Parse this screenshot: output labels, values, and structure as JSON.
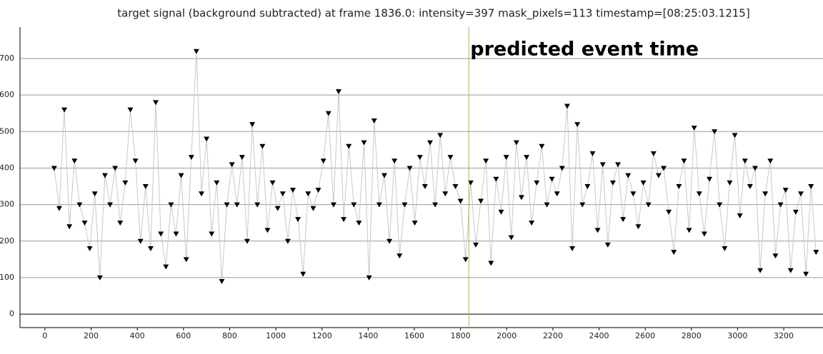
{
  "chart_data": {
    "type": "line",
    "title": "target signal (background subtracted) at frame 1836.0: intensity=397 mask_pixels=113 timestamp=[08:25:03.1215]",
    "x": [
      40,
      62,
      84,
      106,
      128,
      150,
      172,
      194,
      216,
      238,
      260,
      282,
      304,
      326,
      348,
      370,
      392,
      414,
      436,
      458,
      480,
      502,
      524,
      546,
      568,
      590,
      612,
      634,
      656,
      678,
      700,
      722,
      744,
      766,
      788,
      810,
      832,
      854,
      876,
      898,
      920,
      942,
      964,
      986,
      1008,
      1030,
      1052,
      1074,
      1096,
      1118,
      1140,
      1162,
      1184,
      1206,
      1228,
      1250,
      1272,
      1294,
      1316,
      1338,
      1360,
      1382,
      1404,
      1426,
      1448,
      1470,
      1492,
      1514,
      1536,
      1558,
      1580,
      1602,
      1624,
      1646,
      1668,
      1690,
      1712,
      1734,
      1756,
      1778,
      1800,
      1822,
      1844,
      1866,
      1888,
      1910,
      1932,
      1954,
      1976,
      1998,
      2020,
      2042,
      2064,
      2086,
      2108,
      2130,
      2152,
      2174,
      2196,
      2218,
      2240,
      2262,
      2284,
      2306,
      2328,
      2350,
      2372,
      2394,
      2416,
      2438,
      2460,
      2482,
      2504,
      2526,
      2548,
      2570,
      2592,
      2614,
      2636,
      2658,
      2680,
      2702,
      2724,
      2746,
      2768,
      2790,
      2812,
      2834,
      2856,
      2878,
      2900,
      2922,
      2944,
      2966,
      2988,
      3010,
      3032,
      3054,
      3076,
      3098,
      3120,
      3142,
      3164,
      3186,
      3208,
      3230,
      3252,
      3274,
      3296,
      3318,
      3340
    ],
    "series": [
      {
        "color": "#000000",
        "line_color": "#c8c8c8",
        "values": [
          400,
          290,
          560,
          240,
          420,
          300,
          250,
          180,
          330,
          100,
          380,
          300,
          400,
          250,
          360,
          560,
          420,
          200,
          350,
          180,
          580,
          220,
          130,
          300,
          220,
          380,
          150,
          430,
          720,
          330,
          480,
          220,
          360,
          90,
          300,
          410,
          300,
          430,
          200,
          520,
          300,
          460,
          230,
          360,
          290,
          330,
          200,
          340,
          260,
          110,
          330,
          290,
          340,
          420,
          550,
          300,
          610,
          260,
          460,
          300,
          250,
          470,
          100,
          530,
          300,
          380,
          200,
          420,
          160,
          300,
          400,
          250,
          430,
          350,
          470,
          300,
          490,
          330,
          430,
          350,
          310,
          150,
          360,
          190,
          310,
          420,
          140,
          370,
          280,
          430,
          210,
          470,
          320,
          430,
          250,
          360,
          460,
          300,
          370,
          330,
          400,
          570,
          180,
          520,
          300,
          350,
          440,
          230,
          410,
          190,
          360,
          410,
          260,
          380,
          330,
          240,
          360,
          300,
          440,
          380,
          400,
          280,
          170,
          350,
          420,
          230,
          510,
          330,
          220,
          370,
          500,
          300,
          180,
          360,
          490,
          270,
          420,
          350,
          400,
          120,
          330,
          420,
          160,
          300,
          340,
          120,
          280,
          330,
          110,
          350,
          170
        ]
      }
    ],
    "xlim": [
      -108,
      3370
    ],
    "ylim": [
      -37,
      786
    ],
    "xticks": [
      0,
      200,
      400,
      600,
      800,
      1000,
      1200,
      1400,
      1600,
      1800,
      2000,
      2200,
      2400,
      2600,
      2800,
      3000,
      3200
    ],
    "yticks": [
      0,
      100,
      200,
      300,
      400,
      500,
      600,
      700
    ],
    "grid": true,
    "event": {
      "x": 1836,
      "label": "predicted event time",
      "color": "#b5ae55"
    }
  }
}
